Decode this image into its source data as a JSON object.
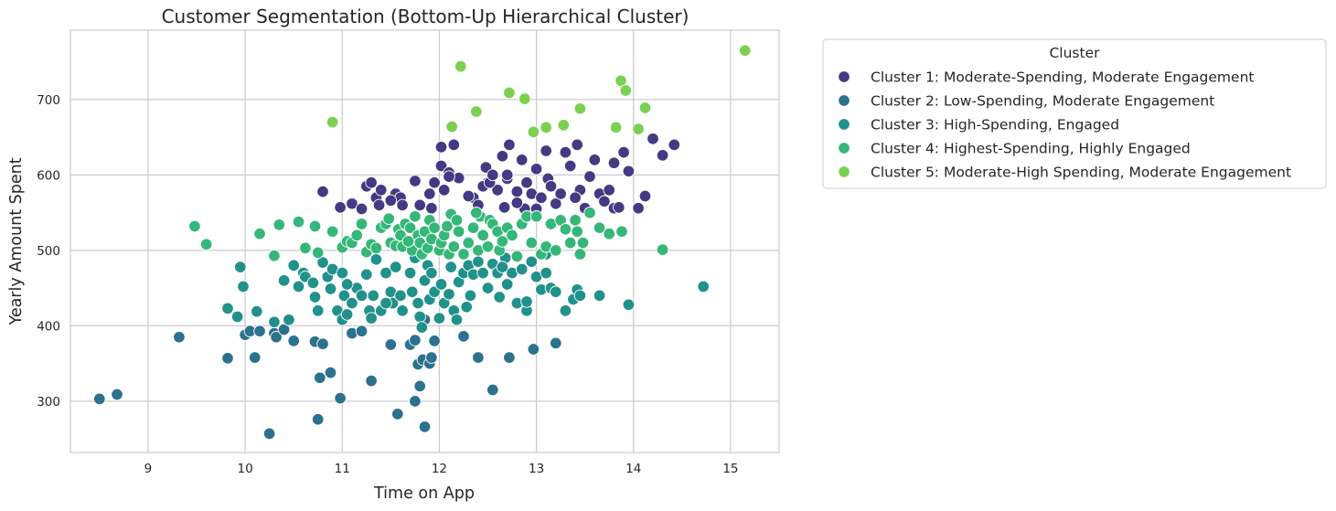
{
  "chart_data": {
    "type": "scatter",
    "title": "Customer Segmentation (Bottom-Up Hierarchical Cluster)",
    "xlabel": "Time on App",
    "ylabel": "Yearly Amount Spent",
    "xlim": [
      8.2,
      15.5
    ],
    "ylim": [
      232,
      792
    ],
    "xticks": [
      9,
      10,
      11,
      12,
      13,
      14,
      15
    ],
    "yticks": [
      300,
      400,
      500,
      600,
      700
    ],
    "grid": true,
    "legend": {
      "title": "Cluster",
      "placement": "outside-right"
    },
    "series": [
      {
        "name": "Cluster 1: Moderate-Spending, Moderate Engagement",
        "color": "#443983",
        "points": [
          [
            10.8,
            578
          ],
          [
            10.98,
            557
          ],
          [
            11.1,
            562
          ],
          [
            11.2,
            555
          ],
          [
            11.25,
            585
          ],
          [
            11.3,
            590
          ],
          [
            11.35,
            570
          ],
          [
            11.4,
            580
          ],
          [
            11.38,
            560
          ],
          [
            11.55,
            575
          ],
          [
            11.6,
            570
          ],
          [
            11.62,
            560
          ],
          [
            11.75,
            592
          ],
          [
            11.8,
            560
          ],
          [
            11.9,
            575
          ],
          [
            11.95,
            590
          ],
          [
            11.92,
            556
          ],
          [
            12.05,
            580
          ],
          [
            12.02,
            612
          ],
          [
            12.1,
            603
          ],
          [
            12.15,
            640
          ],
          [
            12.2,
            596
          ],
          [
            12.02,
            637
          ],
          [
            12.1,
            598
          ],
          [
            12.35,
            570
          ],
          [
            12.4,
            560
          ],
          [
            12.5,
            590
          ],
          [
            12.48,
            610
          ],
          [
            12.45,
            585
          ],
          [
            12.6,
            580
          ],
          [
            12.65,
            625
          ],
          [
            12.7,
            595
          ],
          [
            12.72,
            640
          ],
          [
            12.8,
            578
          ],
          [
            12.85,
            620
          ],
          [
            12.9,
            590
          ],
          [
            12.95,
            575
          ],
          [
            13.0,
            608
          ],
          [
            13.05,
            570
          ],
          [
            13.1,
            632
          ],
          [
            13.12,
            595
          ],
          [
            13.15,
            585
          ],
          [
            13.2,
            562
          ],
          [
            13.3,
            630
          ],
          [
            13.35,
            612
          ],
          [
            13.42,
            640
          ],
          [
            13.45,
            580
          ],
          [
            13.5,
            556
          ],
          [
            13.55,
            598
          ],
          [
            13.6,
            620
          ],
          [
            13.65,
            575
          ],
          [
            13.7,
            565
          ],
          [
            13.75,
            580
          ],
          [
            13.8,
            556
          ],
          [
            13.85,
            557
          ],
          [
            13.9,
            630
          ],
          [
            13.95,
            605
          ],
          [
            14.05,
            556
          ],
          [
            14.12,
            572
          ],
          [
            14.2,
            648
          ],
          [
            14.3,
            626
          ],
          [
            14.42,
            640
          ],
          [
            12.7,
            600
          ],
          [
            12.52,
            590
          ],
          [
            13.25,
            575
          ],
          [
            12.88,
            555
          ],
          [
            13.8,
            616
          ],
          [
            12.3,
            572
          ],
          [
            12.55,
            600
          ],
          [
            12.67,
            557
          ],
          [
            11.5,
            566
          ],
          [
            13.0,
            555
          ],
          [
            12.8,
            563
          ],
          [
            13.4,
            570
          ]
        ]
      },
      {
        "name": "Cluster 2: Low-Spending, Moderate Engagement",
        "color": "#2c718e",
        "points": [
          [
            8.5,
            303
          ],
          [
            8.68,
            309
          ],
          [
            9.32,
            385
          ],
          [
            9.82,
            357
          ],
          [
            10.0,
            388
          ],
          [
            10.05,
            393
          ],
          [
            10.1,
            358
          ],
          [
            10.15,
            393
          ],
          [
            10.25,
            257
          ],
          [
            10.3,
            390
          ],
          [
            10.32,
            385
          ],
          [
            10.5,
            380
          ],
          [
            10.72,
            379
          ],
          [
            10.75,
            276
          ],
          [
            10.77,
            331
          ],
          [
            10.8,
            376
          ],
          [
            10.88,
            338
          ],
          [
            10.98,
            304
          ],
          [
            11.1,
            390
          ],
          [
            11.3,
            327
          ],
          [
            11.5,
            375
          ],
          [
            11.57,
            283
          ],
          [
            11.7,
            375
          ],
          [
            11.75,
            300
          ],
          [
            11.78,
            349
          ],
          [
            11.8,
            320
          ],
          [
            11.83,
            355
          ],
          [
            11.85,
            266
          ],
          [
            11.9,
            350
          ],
          [
            11.92,
            358
          ],
          [
            11.75,
            381
          ],
          [
            12.25,
            386
          ],
          [
            12.4,
            358
          ],
          [
            12.55,
            315
          ],
          [
            12.72,
            358
          ],
          [
            12.97,
            369
          ],
          [
            13.2,
            377
          ],
          [
            11.2,
            393
          ],
          [
            10.4,
            395
          ],
          [
            11.95,
            380
          ],
          [
            11.0,
            408
          ],
          [
            11.85,
            408
          ]
        ]
      },
      {
        "name": "Cluster 3: High-Spending, Engaged",
        "color": "#21918c",
        "points": [
          [
            9.82,
            423
          ],
          [
            9.92,
            412
          ],
          [
            9.95,
            478
          ],
          [
            9.98,
            452
          ],
          [
            10.12,
            419
          ],
          [
            10.4,
            460
          ],
          [
            10.45,
            408
          ],
          [
            10.5,
            480
          ],
          [
            10.6,
            470
          ],
          [
            10.62,
            465
          ],
          [
            10.7,
            457
          ],
          [
            10.72,
            438
          ],
          [
            10.8,
            484
          ],
          [
            10.85,
            465
          ],
          [
            10.88,
            449
          ],
          [
            10.9,
            475
          ],
          [
            10.95,
            420
          ],
          [
            11.0,
            408
          ],
          [
            11.02,
            440
          ],
          [
            11.05,
            415
          ],
          [
            11.1,
            430
          ],
          [
            11.15,
            450
          ],
          [
            11.2,
            440
          ],
          [
            11.25,
            468
          ],
          [
            11.28,
            420
          ],
          [
            11.3,
            410
          ],
          [
            11.32,
            440
          ],
          [
            11.35,
            488
          ],
          [
            11.4,
            420
          ],
          [
            11.45,
            470
          ],
          [
            11.5,
            445
          ],
          [
            11.52,
            430
          ],
          [
            11.55,
            478
          ],
          [
            11.6,
            440
          ],
          [
            11.62,
            420
          ],
          [
            11.7,
            470
          ],
          [
            11.72,
            445
          ],
          [
            11.75,
            490
          ],
          [
            11.78,
            430
          ],
          [
            11.8,
            412
          ],
          [
            11.82,
            398
          ],
          [
            11.85,
            460
          ],
          [
            11.88,
            480
          ],
          [
            11.9,
            435
          ],
          [
            11.92,
            470
          ],
          [
            11.95,
            445
          ],
          [
            12.0,
            410
          ],
          [
            12.02,
            455
          ],
          [
            12.05,
            430
          ],
          [
            12.1,
            442
          ],
          [
            12.12,
            478
          ],
          [
            12.15,
            420
          ],
          [
            12.2,
            458
          ],
          [
            12.25,
            470
          ],
          [
            12.28,
            425
          ],
          [
            12.3,
            480
          ],
          [
            12.32,
            440
          ],
          [
            12.35,
            468
          ],
          [
            12.4,
            485
          ],
          [
            12.45,
            470
          ],
          [
            12.5,
            450
          ],
          [
            12.55,
            482
          ],
          [
            12.6,
            470
          ],
          [
            12.62,
            438
          ],
          [
            12.68,
            490
          ],
          [
            12.7,
            455
          ],
          [
            12.75,
            470
          ],
          [
            12.8,
            430
          ],
          [
            12.85,
            475
          ],
          [
            12.9,
            420
          ],
          [
            12.95,
            485
          ],
          [
            13.0,
            465
          ],
          [
            13.05,
            448
          ],
          [
            13.1,
            470
          ],
          [
            13.15,
            450
          ],
          [
            13.2,
            445
          ],
          [
            13.3,
            420
          ],
          [
            13.38,
            435
          ],
          [
            13.42,
            448
          ],
          [
            13.45,
            440
          ],
          [
            13.65,
            440
          ],
          [
            13.95,
            428
          ],
          [
            14.72,
            452
          ],
          [
            10.3,
            405
          ],
          [
            10.55,
            452
          ],
          [
            11.0,
            470
          ],
          [
            12.18,
            408
          ],
          [
            12.65,
            478
          ],
          [
            11.45,
            430
          ],
          [
            10.75,
            420
          ],
          [
            11.05,
            455
          ],
          [
            12.9,
            432
          ],
          [
            13.1,
            495
          ]
        ]
      },
      {
        "name": "Cluster 4: Highest-Spending, Highly Engaged",
        "color": "#35b779",
        "points": [
          [
            9.48,
            532
          ],
          [
            9.6,
            508
          ],
          [
            10.15,
            522
          ],
          [
            10.3,
            493
          ],
          [
            10.35,
            534
          ],
          [
            10.55,
            538
          ],
          [
            10.62,
            503
          ],
          [
            10.72,
            532
          ],
          [
            10.75,
            497
          ],
          [
            10.9,
            525
          ],
          [
            11.0,
            504
          ],
          [
            11.05,
            512
          ],
          [
            11.1,
            510
          ],
          [
            11.15,
            520
          ],
          [
            11.2,
            535
          ],
          [
            11.25,
            498
          ],
          [
            11.3,
            508
          ],
          [
            11.35,
            503
          ],
          [
            11.4,
            530
          ],
          [
            11.45,
            535
          ],
          [
            11.48,
            542
          ],
          [
            11.5,
            510
          ],
          [
            11.55,
            506
          ],
          [
            11.58,
            528
          ],
          [
            11.6,
            520
          ],
          [
            11.62,
            505
          ],
          [
            11.65,
            535
          ],
          [
            11.7,
            530
          ],
          [
            11.72,
            500
          ],
          [
            11.75,
            545
          ],
          [
            11.78,
            520
          ],
          [
            11.8,
            510
          ],
          [
            11.82,
            495
          ],
          [
            11.85,
            525
          ],
          [
            11.88,
            503
          ],
          [
            11.9,
            540
          ],
          [
            11.92,
            515
          ],
          [
            11.95,
            530
          ],
          [
            12.0,
            500
          ],
          [
            12.02,
            510
          ],
          [
            12.05,
            520
          ],
          [
            12.1,
            495
          ],
          [
            12.12,
            548
          ],
          [
            12.15,
            505
          ],
          [
            12.18,
            540
          ],
          [
            12.2,
            525
          ],
          [
            12.25,
            495
          ],
          [
            12.3,
            510
          ],
          [
            12.35,
            530
          ],
          [
            12.4,
            500
          ],
          [
            12.42,
            545
          ],
          [
            12.45,
            520
          ],
          [
            12.5,
            505
          ],
          [
            12.52,
            540
          ],
          [
            12.55,
            535
          ],
          [
            12.6,
            525
          ],
          [
            12.62,
            500
          ],
          [
            12.65,
            512
          ],
          [
            12.7,
            530
          ],
          [
            12.75,
            520
          ],
          [
            12.8,
            492
          ],
          [
            12.85,
            535
          ],
          [
            12.9,
            545
          ],
          [
            12.95,
            510
          ],
          [
            13.0,
            545
          ],
          [
            13.05,
            495
          ],
          [
            13.1,
            505
          ],
          [
            13.15,
            535
          ],
          [
            13.2,
            500
          ],
          [
            13.25,
            540
          ],
          [
            13.3,
            528
          ],
          [
            13.35,
            510
          ],
          [
            13.4,
            540
          ],
          [
            13.42,
            525
          ],
          [
            13.45,
            495
          ],
          [
            13.48,
            510
          ],
          [
            13.55,
            550
          ],
          [
            13.65,
            530
          ],
          [
            13.75,
            522
          ],
          [
            13.88,
            525
          ],
          [
            14.3,
            501
          ],
          [
            12.08,
            532
          ],
          [
            11.68,
            512
          ],
          [
            12.38,
            550
          ]
        ]
      },
      {
        "name": "Cluster 5: Moderate-High Spending, Moderate Engagement",
        "color": "#7ad151",
        "points": [
          [
            10.9,
            670
          ],
          [
            12.13,
            664
          ],
          [
            12.22,
            744
          ],
          [
            12.38,
            684
          ],
          [
            12.72,
            709
          ],
          [
            12.88,
            701
          ],
          [
            12.97,
            657
          ],
          [
            13.1,
            663
          ],
          [
            13.28,
            666
          ],
          [
            13.45,
            688
          ],
          [
            13.82,
            663
          ],
          [
            13.87,
            725
          ],
          [
            13.92,
            712
          ],
          [
            14.05,
            661
          ],
          [
            14.12,
            689
          ],
          [
            15.15,
            765
          ]
        ]
      }
    ]
  }
}
